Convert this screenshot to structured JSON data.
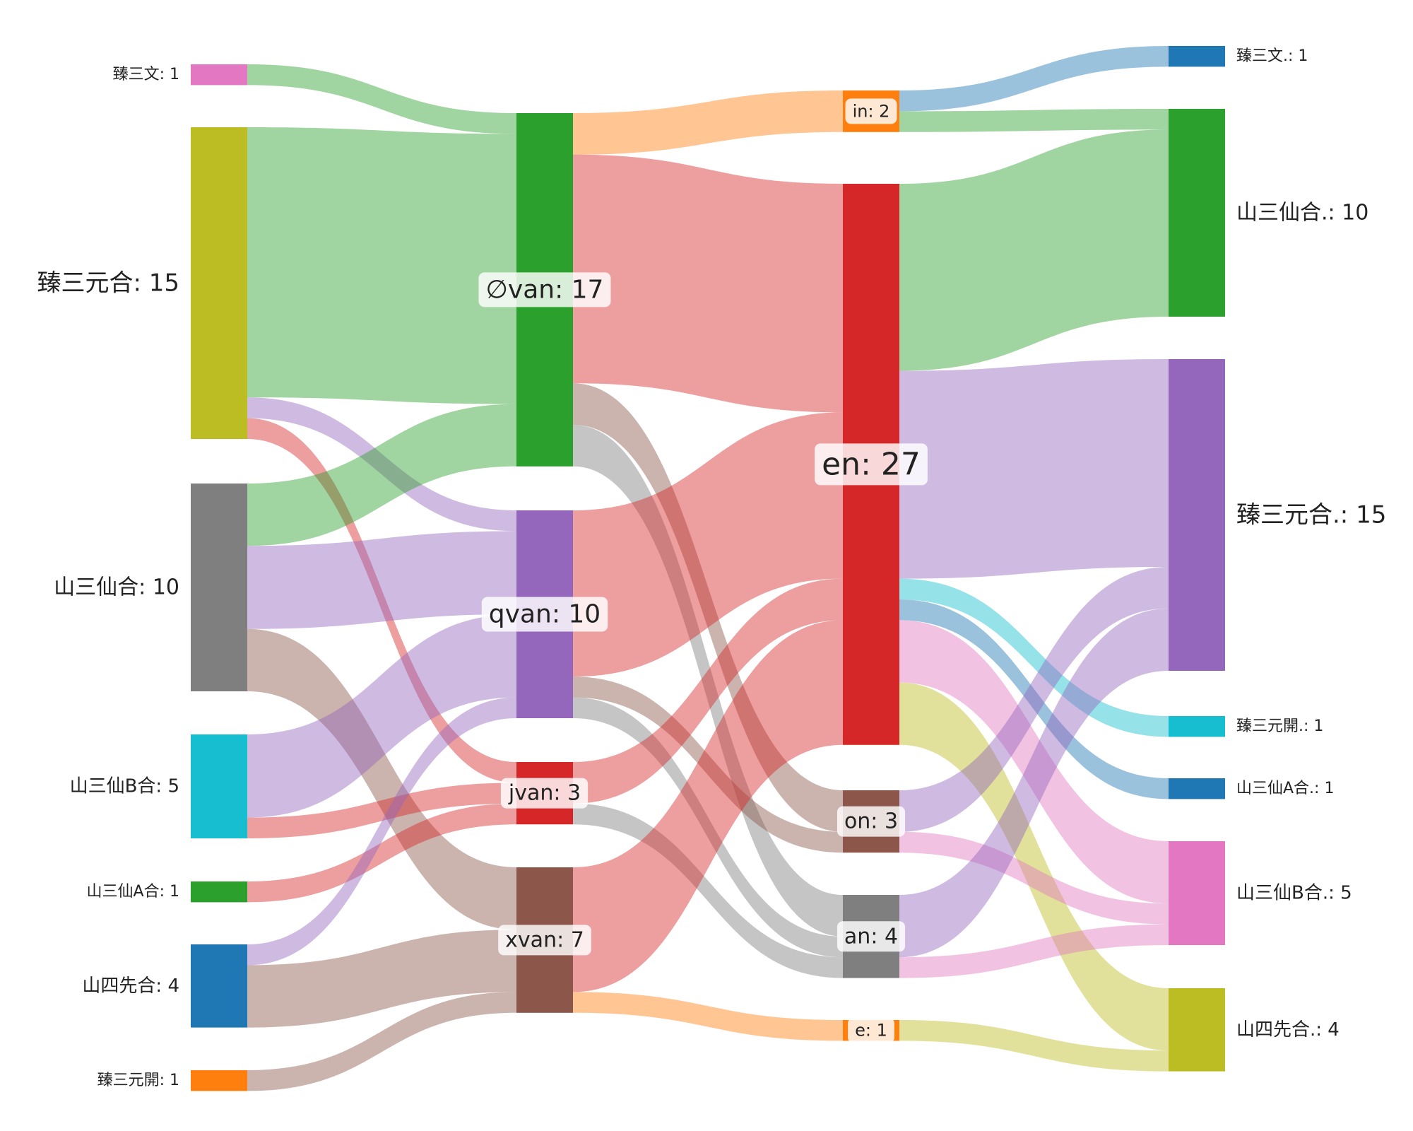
{
  "columns": [
    {
      "nodes": [
        {
          "id": "c0_wen",
          "label": "臻三文: 1",
          "value": 1,
          "color": "#e377c2"
        },
        {
          "id": "c0_yuanhe",
          "label": "臻三元合: 15",
          "value": 15,
          "color": "#bcbd22"
        },
        {
          "id": "c0_xianhe",
          "label": "山三仙合: 10",
          "value": 10,
          "color": "#7f7f7f"
        },
        {
          "id": "c0_xianBhe",
          "label": "山三仙B合: 5",
          "value": 5,
          "color": "#17becf"
        },
        {
          "id": "c0_xianAhe",
          "label": "山三仙A合: 1",
          "value": 1,
          "color": "#2ca02c"
        },
        {
          "id": "c0_sixian",
          "label": "山四先合: 4",
          "value": 4,
          "color": "#1f77b4"
        },
        {
          "id": "c0_yuankai",
          "label": "臻三元開: 1",
          "value": 1,
          "color": "#ff7f0e"
        }
      ]
    },
    {
      "nodes": [
        {
          "id": "c1_ovan",
          "label": "∅van: 17",
          "value": 17,
          "color": "#2ca02c"
        },
        {
          "id": "c1_qvan",
          "label": "qvan: 10",
          "value": 10,
          "color": "#9467bd"
        },
        {
          "id": "c1_jvan",
          "label": "jvan: 3",
          "value": 3,
          "color": "#d62728"
        },
        {
          "id": "c1_xvan",
          "label": "xvan: 7",
          "value": 7,
          "color": "#8c564b"
        }
      ]
    },
    {
      "nodes": [
        {
          "id": "c2_in",
          "label": "in: 2",
          "value": 2,
          "color": "#ff7f0e"
        },
        {
          "id": "c2_en",
          "label": "en: 27",
          "value": 27,
          "color": "#d62728"
        },
        {
          "id": "c2_on",
          "label": "on: 3",
          "value": 3,
          "color": "#8c564b"
        },
        {
          "id": "c2_an",
          "label": "an: 4",
          "value": 4,
          "color": "#7f7f7f"
        },
        {
          "id": "c2_e",
          "label": "e: 1",
          "value": 1,
          "color": "#ff7f0e"
        }
      ]
    },
    {
      "nodes": [
        {
          "id": "c3_wen",
          "label": "臻三文.: 1",
          "value": 1,
          "color": "#1f77b4"
        },
        {
          "id": "c3_xianhe",
          "label": "山三仙合.: 10",
          "value": 10,
          "color": "#2ca02c"
        },
        {
          "id": "c3_yuanhe",
          "label": "臻三元合.: 15",
          "value": 15,
          "color": "#9467bd"
        },
        {
          "id": "c3_yuankai",
          "label": "臻三元開.: 1",
          "value": 1,
          "color": "#17becf"
        },
        {
          "id": "c3_xianAhe",
          "label": "山三仙A合.: 1",
          "value": 1,
          "color": "#1f77b4"
        },
        {
          "id": "c3_xianBhe",
          "label": "山三仙B合.: 5",
          "value": 5,
          "color": "#e377c2"
        },
        {
          "id": "c3_sixian",
          "label": "山四先合.: 4",
          "value": 4,
          "color": "#bcbd22"
        }
      ]
    }
  ],
  "links": [
    {
      "source": "c0_wen",
      "target": "c1_ovan",
      "value": 1
    },
    {
      "source": "c0_yuanhe",
      "target": "c1_ovan",
      "value": 13
    },
    {
      "source": "c0_yuanhe",
      "target": "c1_qvan",
      "value": 1
    },
    {
      "source": "c0_yuanhe",
      "target": "c1_jvan",
      "value": 1
    },
    {
      "source": "c0_xianhe",
      "target": "c1_ovan",
      "value": 3
    },
    {
      "source": "c0_xianhe",
      "target": "c1_qvan",
      "value": 4
    },
    {
      "source": "c0_xianhe",
      "target": "c1_xvan",
      "value": 3
    },
    {
      "source": "c0_xianBhe",
      "target": "c1_qvan",
      "value": 4
    },
    {
      "source": "c0_xianBhe",
      "target": "c1_jvan",
      "value": 1
    },
    {
      "source": "c0_xianAhe",
      "target": "c1_jvan",
      "value": 1
    },
    {
      "source": "c0_sixian",
      "target": "c1_qvan",
      "value": 1
    },
    {
      "source": "c0_sixian",
      "target": "c1_xvan",
      "value": 3
    },
    {
      "source": "c0_yuankai",
      "target": "c1_xvan",
      "value": 1
    },
    {
      "source": "c1_ovan",
      "target": "c2_in",
      "value": 2
    },
    {
      "source": "c1_ovan",
      "target": "c2_en",
      "value": 11
    },
    {
      "source": "c1_ovan",
      "target": "c2_on",
      "value": 2
    },
    {
      "source": "c1_ovan",
      "target": "c2_an",
      "value": 2
    },
    {
      "source": "c1_qvan",
      "target": "c2_en",
      "value": 8
    },
    {
      "source": "c1_qvan",
      "target": "c2_on",
      "value": 1
    },
    {
      "source": "c1_qvan",
      "target": "c2_an",
      "value": 1
    },
    {
      "source": "c1_jvan",
      "target": "c2_en",
      "value": 2
    },
    {
      "source": "c1_jvan",
      "target": "c2_an",
      "value": 1
    },
    {
      "source": "c1_xvan",
      "target": "c2_en",
      "value": 6
    },
    {
      "source": "c1_xvan",
      "target": "c2_e",
      "value": 1
    },
    {
      "source": "c2_in",
      "target": "c3_wen",
      "value": 1
    },
    {
      "source": "c2_in",
      "target": "c3_xianhe",
      "value": 1
    },
    {
      "source": "c2_en",
      "target": "c3_xianhe",
      "value": 9
    },
    {
      "source": "c2_en",
      "target": "c3_yuanhe",
      "value": 10
    },
    {
      "source": "c2_en",
      "target": "c3_yuankai",
      "value": 1
    },
    {
      "source": "c2_en",
      "target": "c3_xianAhe",
      "value": 1
    },
    {
      "source": "c2_en",
      "target": "c3_xianBhe",
      "value": 3
    },
    {
      "source": "c2_en",
      "target": "c3_sixian",
      "value": 3
    },
    {
      "source": "c2_on",
      "target": "c3_yuanhe",
      "value": 2
    },
    {
      "source": "c2_on",
      "target": "c3_xianBhe",
      "value": 1
    },
    {
      "source": "c2_an",
      "target": "c3_yuanhe",
      "value": 3
    },
    {
      "source": "c2_an",
      "target": "c3_xianBhe",
      "value": 1
    },
    {
      "source": "c2_e",
      "target": "c3_sixian",
      "value": 1
    }
  ]
}
